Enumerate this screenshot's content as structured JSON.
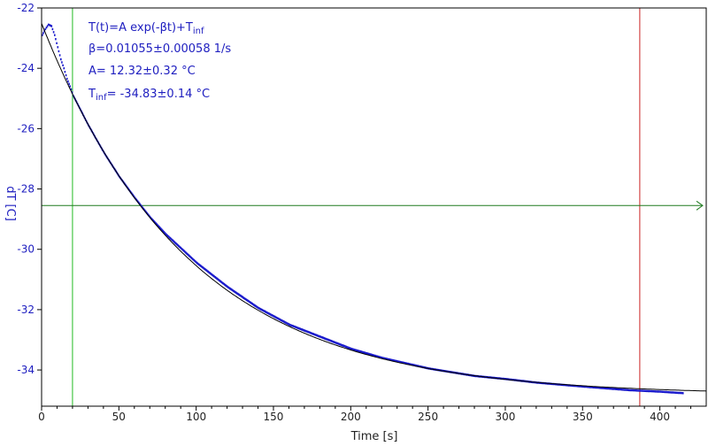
{
  "chart_data": {
    "type": "scatter",
    "xlabel": "Time [s]",
    "ylabel": "dT [C]",
    "xlim": [
      0,
      430
    ],
    "ylim": [
      -35.2,
      -22
    ],
    "x_ticks": [
      0,
      50,
      100,
      150,
      200,
      250,
      300,
      350,
      400
    ],
    "y_ticks": [
      -22,
      -24,
      -26,
      -28,
      -30,
      -32,
      -34
    ],
    "grid": false,
    "annotation": {
      "formula_prefix": "T(t)=A exp(-βt)+T",
      "formula_sub": "inf",
      "beta": "β=0.01055±0.00058 1/s",
      "amplitude": "A= 12.32±0.32 °C",
      "tinf_prefix": "T",
      "tinf_sub": "inf",
      "tinf_value": "= -34.83±0.14 °C"
    },
    "fit": {
      "A": 12.32,
      "beta": 0.01055,
      "T_inf": -34.83
    },
    "measured_points": {
      "x": [
        0,
        2,
        4,
        6,
        8,
        10,
        12,
        14,
        16,
        18,
        20,
        25,
        30,
        40,
        50,
        60,
        70,
        80,
        100,
        120,
        140,
        160,
        180,
        200,
        220,
        250,
        280,
        300,
        320,
        350,
        380,
        400,
        415
      ],
      "y": [
        -22.9,
        -22.7,
        -22.55,
        -22.6,
        -22.9,
        -23.3,
        -23.7,
        -24.0,
        -24.35,
        -24.6,
        -24.9,
        -25.4,
        -25.9,
        -26.8,
        -27.6,
        -28.3,
        -28.95,
        -29.5,
        -30.45,
        -31.25,
        -31.95,
        -32.5,
        -32.9,
        -33.3,
        -33.6,
        -33.95,
        -34.2,
        -34.3,
        -34.42,
        -34.55,
        -34.67,
        -34.72,
        -34.77
      ]
    },
    "markers": {
      "vertical_green_x": 20,
      "vertical_red_x": 387,
      "horizontal_green_y": -28.55
    },
    "colors": {
      "data": "#1a1acc",
      "fit": "#000000",
      "green_marker": "#22bb22",
      "red_marker": "#cc2222",
      "horizontal_marker": "#1f7a1f",
      "y_axis_text": "#2020c0"
    }
  }
}
